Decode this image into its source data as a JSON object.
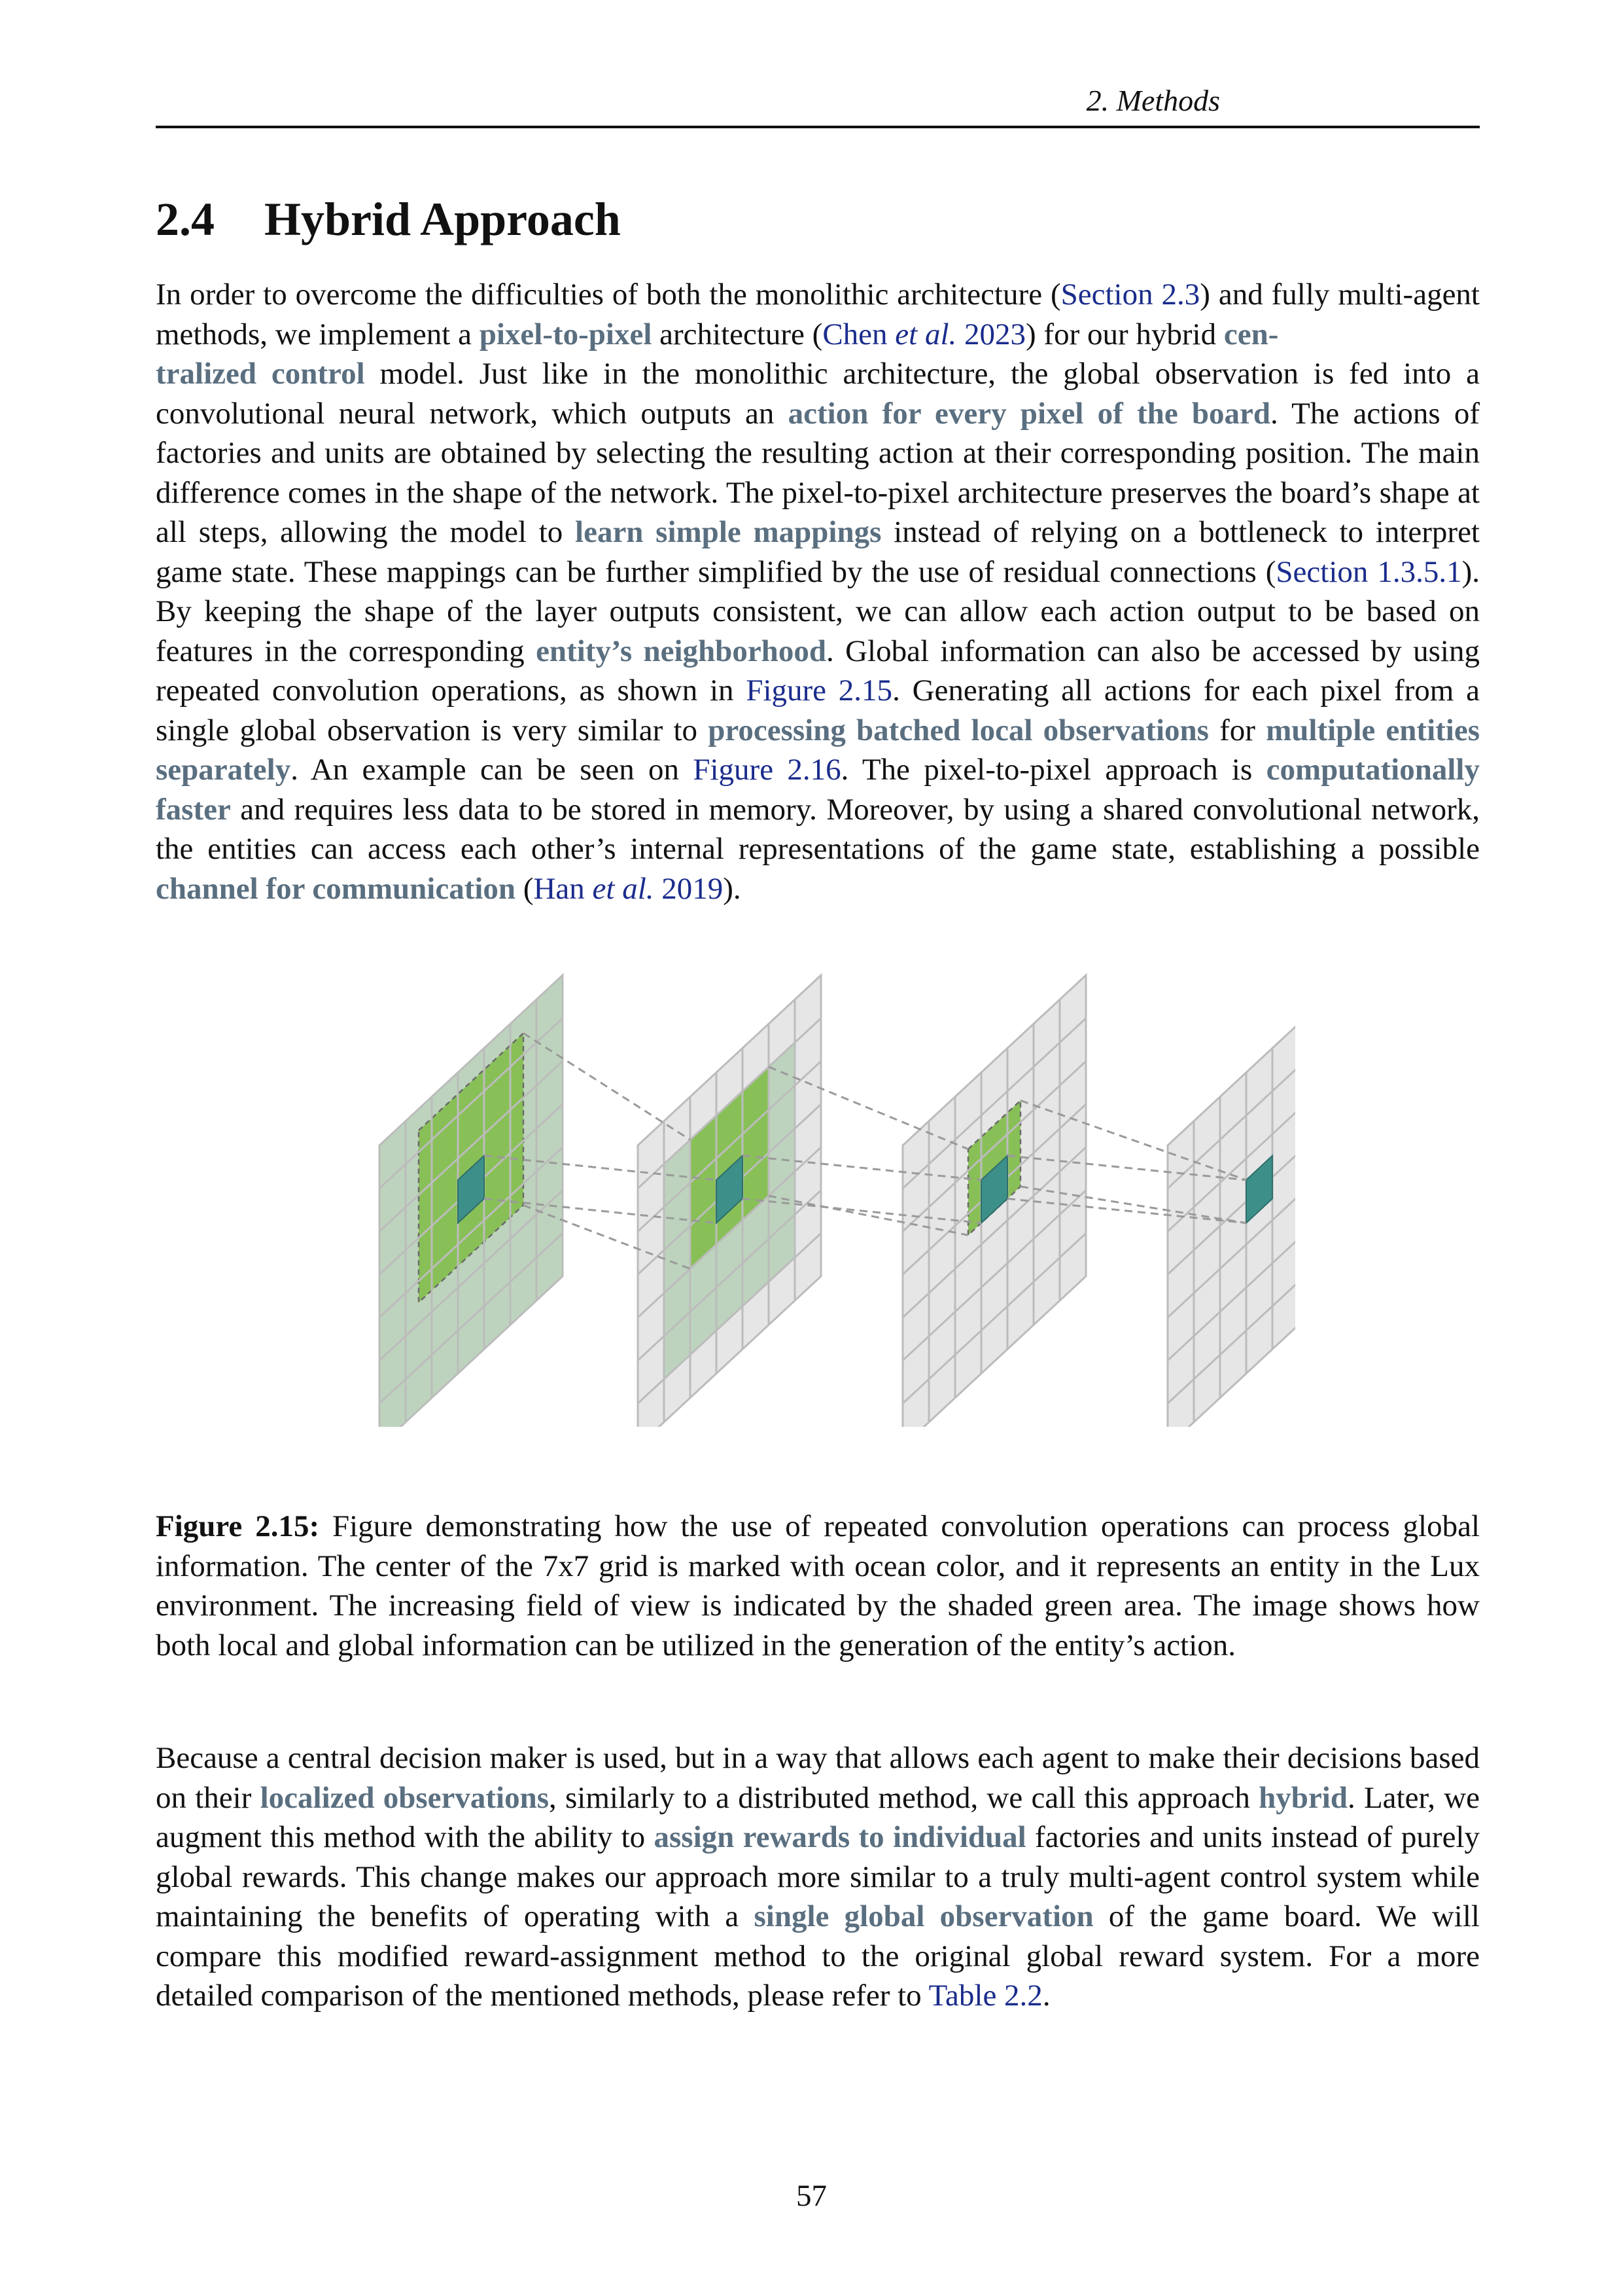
{
  "header": {
    "running_title": "2. Methods"
  },
  "section": {
    "number": "2.4",
    "title": "Hybrid Approach"
  },
  "para1": {
    "t01": "In order to overcome the difficulties of both the monolithic architecture (",
    "r01": "Section 2.3",
    "t02": ") and fully multi-agent methods, we implement a ",
    "k01": "pixel-to-pixel",
    "t03": " architecture  (",
    "r02a": "Chen ",
    "r02b": "et al.",
    "r02c": " 2023",
    "t04": ") for our hybrid ",
    "k02a": "cen-",
    "k02b": "tralized control",
    "t05": " model. Just like in the monolithic architecture, the global observation is fed into a convolutional neural network, which outputs an ",
    "k03": "action for every pixel of the board",
    "t06": ". The actions of factories and units are obtained by selecting the resulting action at their corresponding position. The main difference comes in the shape of the network. The pixel-to-pixel architecture preserves the board’s shape at all steps, allowing the model to ",
    "k04": "learn simple mappings",
    "t07": " instead of relying on a bottleneck to interpret game state. These mappings can be further simplified by the use of residual connections (",
    "r03": "Section 1.3.5.1",
    "t08": "). By keeping the shape of the layer outputs consistent, we can allow each action output to be based on features in the corresponding ",
    "k05": "entity’s neighborhood",
    "t09": ". Global information can also be accessed by using repeated convolution operations, as shown in ",
    "r04": "Figure 2.15",
    "t10": ". Generating all actions for each pixel from a single global observation is very similar to ",
    "k06": "processing batched local observations",
    "t11": " for ",
    "k07": "multiple entities separately",
    "t12": ". An example can be seen on ",
    "r05": "Figure 2.16",
    "t13": ". The pixel-to-pixel approach is ",
    "k08": "computationally faster",
    "t14": " and requires less data to be stored in memory. Moreover, by using a shared convolutional network, the entities can access each other’s internal representations of the game state, establishing a possible ",
    "k09": "channel for communication",
    "t15": " (",
    "r06a": "Han ",
    "r06b": "et al.",
    "r06c": " 2019",
    "t16": ")."
  },
  "figure": {
    "label": "Figure 2.15:",
    "caption": " Figure demonstrating how the use of repeated convolution operations can process global information. The center of the 7x7 grid is marked with ocean color, and it represents an entity in the Lux environment. The increasing field of view is indicated by the shaded green area. The image shows how both local and global information can be utilized in the generation of the entity’s action.",
    "colors": {
      "grid_fill": "#e6e6e6",
      "grid_line": "#bcbcbc",
      "shade_fill": "#bdd3bd",
      "field_fill": "#88c057",
      "center_fill": "#3d8f8a",
      "dash": "#9a9a9a"
    }
  },
  "para2": {
    "t01": "Because a central decision maker is used, but in a way that allows each agent to make their decisions based on their ",
    "k01": "localized observations",
    "t02": ", similarly to a distributed method, we call this approach ",
    "k02": "hybrid",
    "t03": ". Later, we augment this method with the ability to ",
    "k03": "assign rewards to individual",
    "t04": " factories and units instead of purely global rewards. This change makes our approach more similar to a truly multi-agent control system while maintaining the benefits of operating with a ",
    "k04": "single global observation",
    "t05": " of the game board. We will compare this modified reward-assignment method to the original global reward system. For a more detailed comparison of the mentioned methods, please refer to ",
    "r01": "Table 2.2",
    "t06": "."
  },
  "page_number": "57"
}
